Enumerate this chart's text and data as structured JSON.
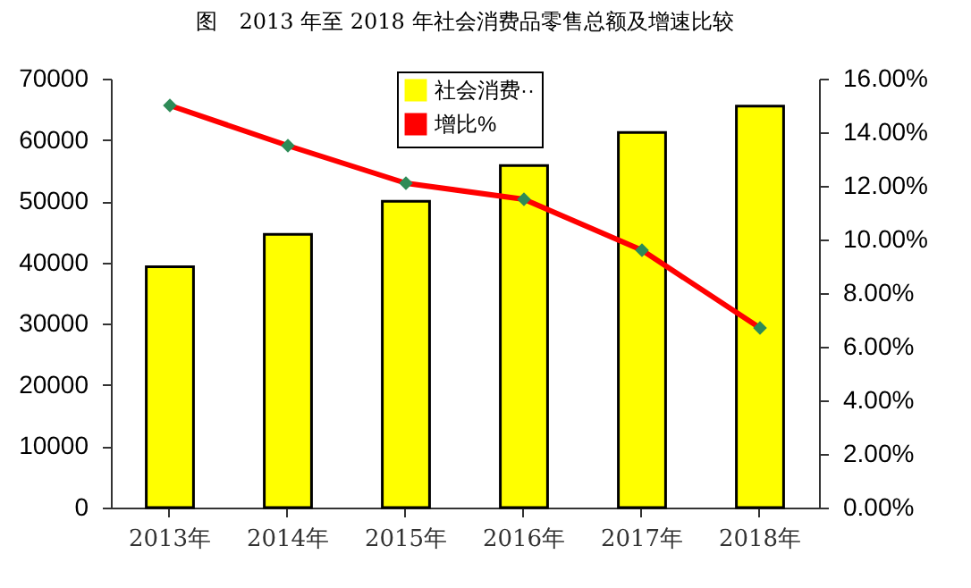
{
  "chart_data": {
    "type": "bar",
    "title": "图　2013 年至 2018 年社会消费品零售总额及增速比较",
    "categories": [
      "2013年",
      "2014年",
      "2015年",
      "2016年",
      "2017年",
      "2018年"
    ],
    "series": [
      {
        "name": "社会消费··",
        "color": "#ffff00",
        "values": [
          39300,
          44600,
          50000,
          55800,
          61200,
          65500
        ]
      },
      {
        "name": "增比%",
        "type": "line",
        "axis": "y2",
        "color": "#ff0000",
        "values": [
          15.0,
          13.5,
          12.1,
          11.5,
          9.6,
          6.7
        ]
      }
    ],
    "ylim": [
      0,
      70000
    ],
    "yticks": [
      0,
      10000,
      20000,
      30000,
      40000,
      50000,
      60000,
      70000
    ],
    "y2lim": [
      0,
      16
    ],
    "y2ticks": [
      {
        "value": 0,
        "label": "0.00%"
      },
      {
        "value": 2,
        "label": "2.00%"
      },
      {
        "value": 4,
        "label": "4.00%"
      },
      {
        "value": 6,
        "label": "6.00%"
      },
      {
        "value": 8,
        "label": "8.00%"
      },
      {
        "value": 10,
        "label": "10.00%"
      },
      {
        "value": 12,
        "label": "12.00%"
      },
      {
        "value": 14,
        "label": "14.00%"
      },
      {
        "value": 16,
        "label": "16.00%"
      }
    ],
    "grid": false,
    "legend": "top",
    "marker": "diamond",
    "line_style": "solid"
  }
}
